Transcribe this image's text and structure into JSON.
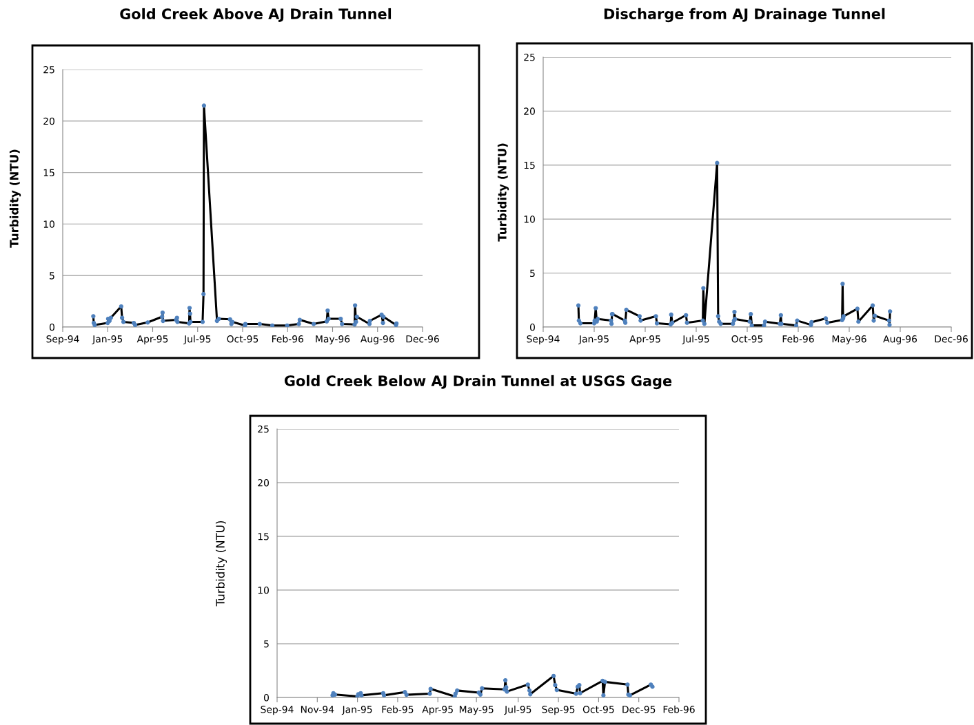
{
  "chart_data": [
    {
      "type": "line",
      "title": "Gold Creek Above AJ Drain Tunnel",
      "ylabel": "Turbidity (NTU)",
      "marker": "circle",
      "grid": "y",
      "ylim": [
        0,
        25
      ],
      "yticks": [
        0,
        5,
        10,
        15,
        20,
        25
      ],
      "xlim": [
        "1994-09-25",
        "1996-12-03"
      ],
      "xticks": [
        {
          "value": "1994-09-25",
          "label": "Sep-94"
        },
        {
          "value": "1995-01-03",
          "label": "Jan-95"
        },
        {
          "value": "1995-04-13",
          "label": "Apr-95"
        },
        {
          "value": "1995-07-22",
          "label": "Jul-95"
        },
        {
          "value": "1995-10-30",
          "label": "Oct-95"
        },
        {
          "value": "1996-02-07",
          "label": "Feb-96"
        },
        {
          "value": "1996-05-17",
          "label": "May-96"
        },
        {
          "value": "1996-08-25",
          "label": "Aug-96"
        },
        {
          "value": "1996-12-03",
          "label": "Dec-96"
        }
      ],
      "x": [
        "1994-12-02",
        "1994-12-03",
        "1994-12-05",
        "1995-01-03",
        "1995-01-04",
        "1995-01-07",
        "1995-01-10",
        "1995-02-02",
        "1995-02-04",
        "1995-02-07",
        "1995-03-02",
        "1995-03-05",
        "1995-04-02",
        "1995-05-04",
        "1995-05-05",
        "1995-05-06",
        "1995-06-04",
        "1995-06-06",
        "1995-06-07",
        "1995-07-03",
        "1995-07-04",
        "1995-07-05",
        "1995-07-06",
        "1995-08-02",
        "1995-08-04",
        "1995-08-05",
        "1995-09-03",
        "1995-09-07",
        "1995-10-02",
        "1995-10-05",
        "1995-10-07",
        "1995-11-04",
        "1995-11-05",
        "1995-12-07",
        "1996-01-04",
        "1996-02-06",
        "1996-03-03",
        "1996-03-05",
        "1996-04-05",
        "1996-05-04",
        "1996-05-06",
        "1996-05-08",
        "1996-06-04",
        "1996-06-07",
        "1996-07-05",
        "1996-07-06",
        "1996-07-08",
        "1996-07-10",
        "1996-08-07",
        "1996-08-08",
        "1996-09-03",
        "1996-09-06",
        "1996-09-07",
        "1996-10-05",
        "1996-10-06"
      ],
      "series": [
        {
          "color": "#000000",
          "values": [
            1.05,
            0.4,
            0.2,
            0.4,
            0.8,
            0.6,
            0.9,
            2.0,
            0.9,
            0.5,
            0.4,
            0.2,
            0.45,
            1.0,
            1.4,
            0.6,
            0.7,
            0.9,
            0.5,
            0.35,
            1.85,
            1.3,
            0.5,
            0.5,
            3.2,
            21.5,
            0.6,
            0.8,
            0.75,
            0.3,
            0.5,
            0.15,
            0.3,
            0.3,
            0.15,
            0.15,
            0.3,
            0.7,
            0.3,
            0.55,
            1.6,
            0.8,
            0.8,
            0.3,
            0.25,
            2.1,
            0.5,
            1.0,
            0.3,
            0.6,
            1.2,
            0.4,
            1.0,
            0.2,
            0.35
          ]
        }
      ]
    },
    {
      "type": "line",
      "title": "Discharge from AJ Drainage Tunnel",
      "ylabel": "Turbidity (NTU)",
      "marker": "circle",
      "grid": "y",
      "ylim": [
        0,
        25
      ],
      "yticks": [
        0,
        5,
        10,
        15,
        20,
        25
      ],
      "xlim": [
        "1994-09-25",
        "1996-12-03"
      ],
      "xticks": [
        {
          "value": "1994-09-25",
          "label": "Sep-94"
        },
        {
          "value": "1995-01-03",
          "label": "Jan-95"
        },
        {
          "value": "1995-04-13",
          "label": "Apr-95"
        },
        {
          "value": "1995-07-22",
          "label": "Jul-95"
        },
        {
          "value": "1995-10-30",
          "label": "Oct-95"
        },
        {
          "value": "1996-02-07",
          "label": "Feb-96"
        },
        {
          "value": "1996-05-17",
          "label": "May-96"
        },
        {
          "value": "1996-08-25",
          "label": "Aug-96"
        },
        {
          "value": "1996-12-03",
          "label": "Dec-96"
        }
      ],
      "x": [
        "1994-12-03",
        "1994-12-04",
        "1994-12-07",
        "1995-01-03",
        "1995-01-04",
        "1995-01-06",
        "1995-01-08",
        "1995-01-10",
        "1995-02-05",
        "1995-02-06",
        "1995-02-07",
        "1995-02-08",
        "1995-03-04",
        "1995-03-05",
        "1995-03-07",
        "1995-04-02",
        "1995-04-04",
        "1995-05-04",
        "1995-05-06",
        "1995-06-02",
        "1995-06-03",
        "1995-06-05",
        "1995-07-02",
        "1995-07-04",
        "1995-08-04",
        "1995-08-05",
        "1995-08-07",
        "1995-09-01",
        "1995-09-03",
        "1995-09-05",
        "1995-09-08",
        "1995-10-02",
        "1995-10-04",
        "1995-10-05",
        "1995-10-06",
        "1995-11-04",
        "1995-11-06",
        "1995-11-08",
        "1995-12-02",
        "1995-12-04",
        "1996-01-02",
        "1996-01-04",
        "1996-01-05",
        "1996-02-03",
        "1996-02-05",
        "1996-03-03",
        "1996-03-04",
        "1996-04-01",
        "1996-04-04",
        "1996-05-03",
        "1996-05-04",
        "1996-05-05",
        "1996-05-06",
        "1996-06-02",
        "1996-06-04",
        "1996-07-02",
        "1996-07-04",
        "1996-07-06",
        "1996-08-03",
        "1996-08-04",
        "1996-08-05"
      ],
      "series": [
        {
          "color": "#000000",
          "values": [
            2.0,
            0.6,
            0.35,
            0.35,
            0.6,
            1.75,
            0.5,
            0.75,
            0.6,
            0.3,
            1.2,
            1.2,
            0.6,
            0.4,
            1.6,
            1.0,
            0.6,
            1.0,
            0.35,
            0.25,
            1.15,
            0.4,
            1.1,
            0.4,
            0.6,
            3.6,
            0.3,
            15.2,
            1.0,
            0.5,
            0.3,
            0.3,
            0.6,
            1.4,
            0.75,
            0.5,
            1.2,
            0.15,
            0.15,
            0.5,
            0.3,
            1.1,
            0.3,
            0.15,
            0.6,
            0.2,
            0.45,
            0.8,
            0.4,
            0.65,
            4.0,
            0.8,
            1.0,
            1.7,
            0.5,
            2.0,
            0.6,
            1.05,
            0.6,
            0.2,
            1.45
          ]
        }
      ]
    },
    {
      "type": "line",
      "title": "Gold Creek Below AJ Drain Tunnel at USGS Gage",
      "ylabel": "Turbidity (NTU)",
      "marker": "circle",
      "grid": "y",
      "ylim": [
        0,
        25
      ],
      "yticks": [
        0,
        5,
        10,
        15,
        20,
        25
      ],
      "xlim": [
        "1994-09-25",
        "1996-02-07"
      ],
      "xticks": [
        {
          "value": "1994-09-25",
          "label": "Sep-94"
        },
        {
          "value": "1994-11-14",
          "label": "Nov-94"
        },
        {
          "value": "1995-01-03",
          "label": "Jan-95"
        },
        {
          "value": "1995-02-22",
          "label": "Feb-95"
        },
        {
          "value": "1995-04-13",
          "label": "Apr-95"
        },
        {
          "value": "1995-05-31",
          "label": "May-95"
        },
        {
          "value": "1995-07-22",
          "label": "Jul-95"
        },
        {
          "value": "1995-09-10",
          "label": "Sep-95"
        },
        {
          "value": "1995-10-30",
          "label": "Oct-95"
        },
        {
          "value": "1995-12-19",
          "label": "Dec-95"
        },
        {
          "value": "1996-02-07",
          "label": "Feb-96"
        }
      ],
      "x": [
        "1994-12-03",
        "1994-12-04",
        "1994-12-06",
        "1995-01-03",
        "1995-01-04",
        "1995-01-07",
        "1995-01-08",
        "1995-02-04",
        "1995-02-05",
        "1995-03-03",
        "1995-03-05",
        "1995-04-03",
        "1995-04-04",
        "1995-05-04",
        "1995-05-05",
        "1995-05-07",
        "1995-06-03",
        "1995-06-05",
        "1995-06-07",
        "1995-07-05",
        "1995-07-06",
        "1995-07-07",
        "1995-07-08",
        "1995-08-03",
        "1995-08-05",
        "1995-08-06",
        "1995-09-04",
        "1995-09-06",
        "1995-09-08",
        "1995-10-02",
        "1995-10-04",
        "1995-10-06",
        "1995-10-07",
        "1995-11-04",
        "1995-11-05",
        "1995-11-07",
        "1995-12-05",
        "1995-12-06",
        "1995-12-08",
        "1996-01-03",
        "1996-01-05"
      ],
      "series": [
        {
          "color": "#000000",
          "values": [
            0.2,
            0.4,
            0.27,
            0.1,
            0.3,
            0.4,
            0.2,
            0.4,
            0.2,
            0.5,
            0.25,
            0.35,
            0.8,
            0.1,
            0.35,
            0.65,
            0.45,
            0.27,
            0.85,
            0.75,
            1.6,
            0.95,
            0.55,
            1.2,
            0.65,
            0.3,
            2.0,
            1.15,
            0.7,
            0.35,
            1.0,
            1.15,
            0.4,
            1.55,
            0.2,
            1.45,
            1.2,
            0.27,
            0.2,
            1.2,
            1.0
          ]
        }
      ]
    }
  ]
}
